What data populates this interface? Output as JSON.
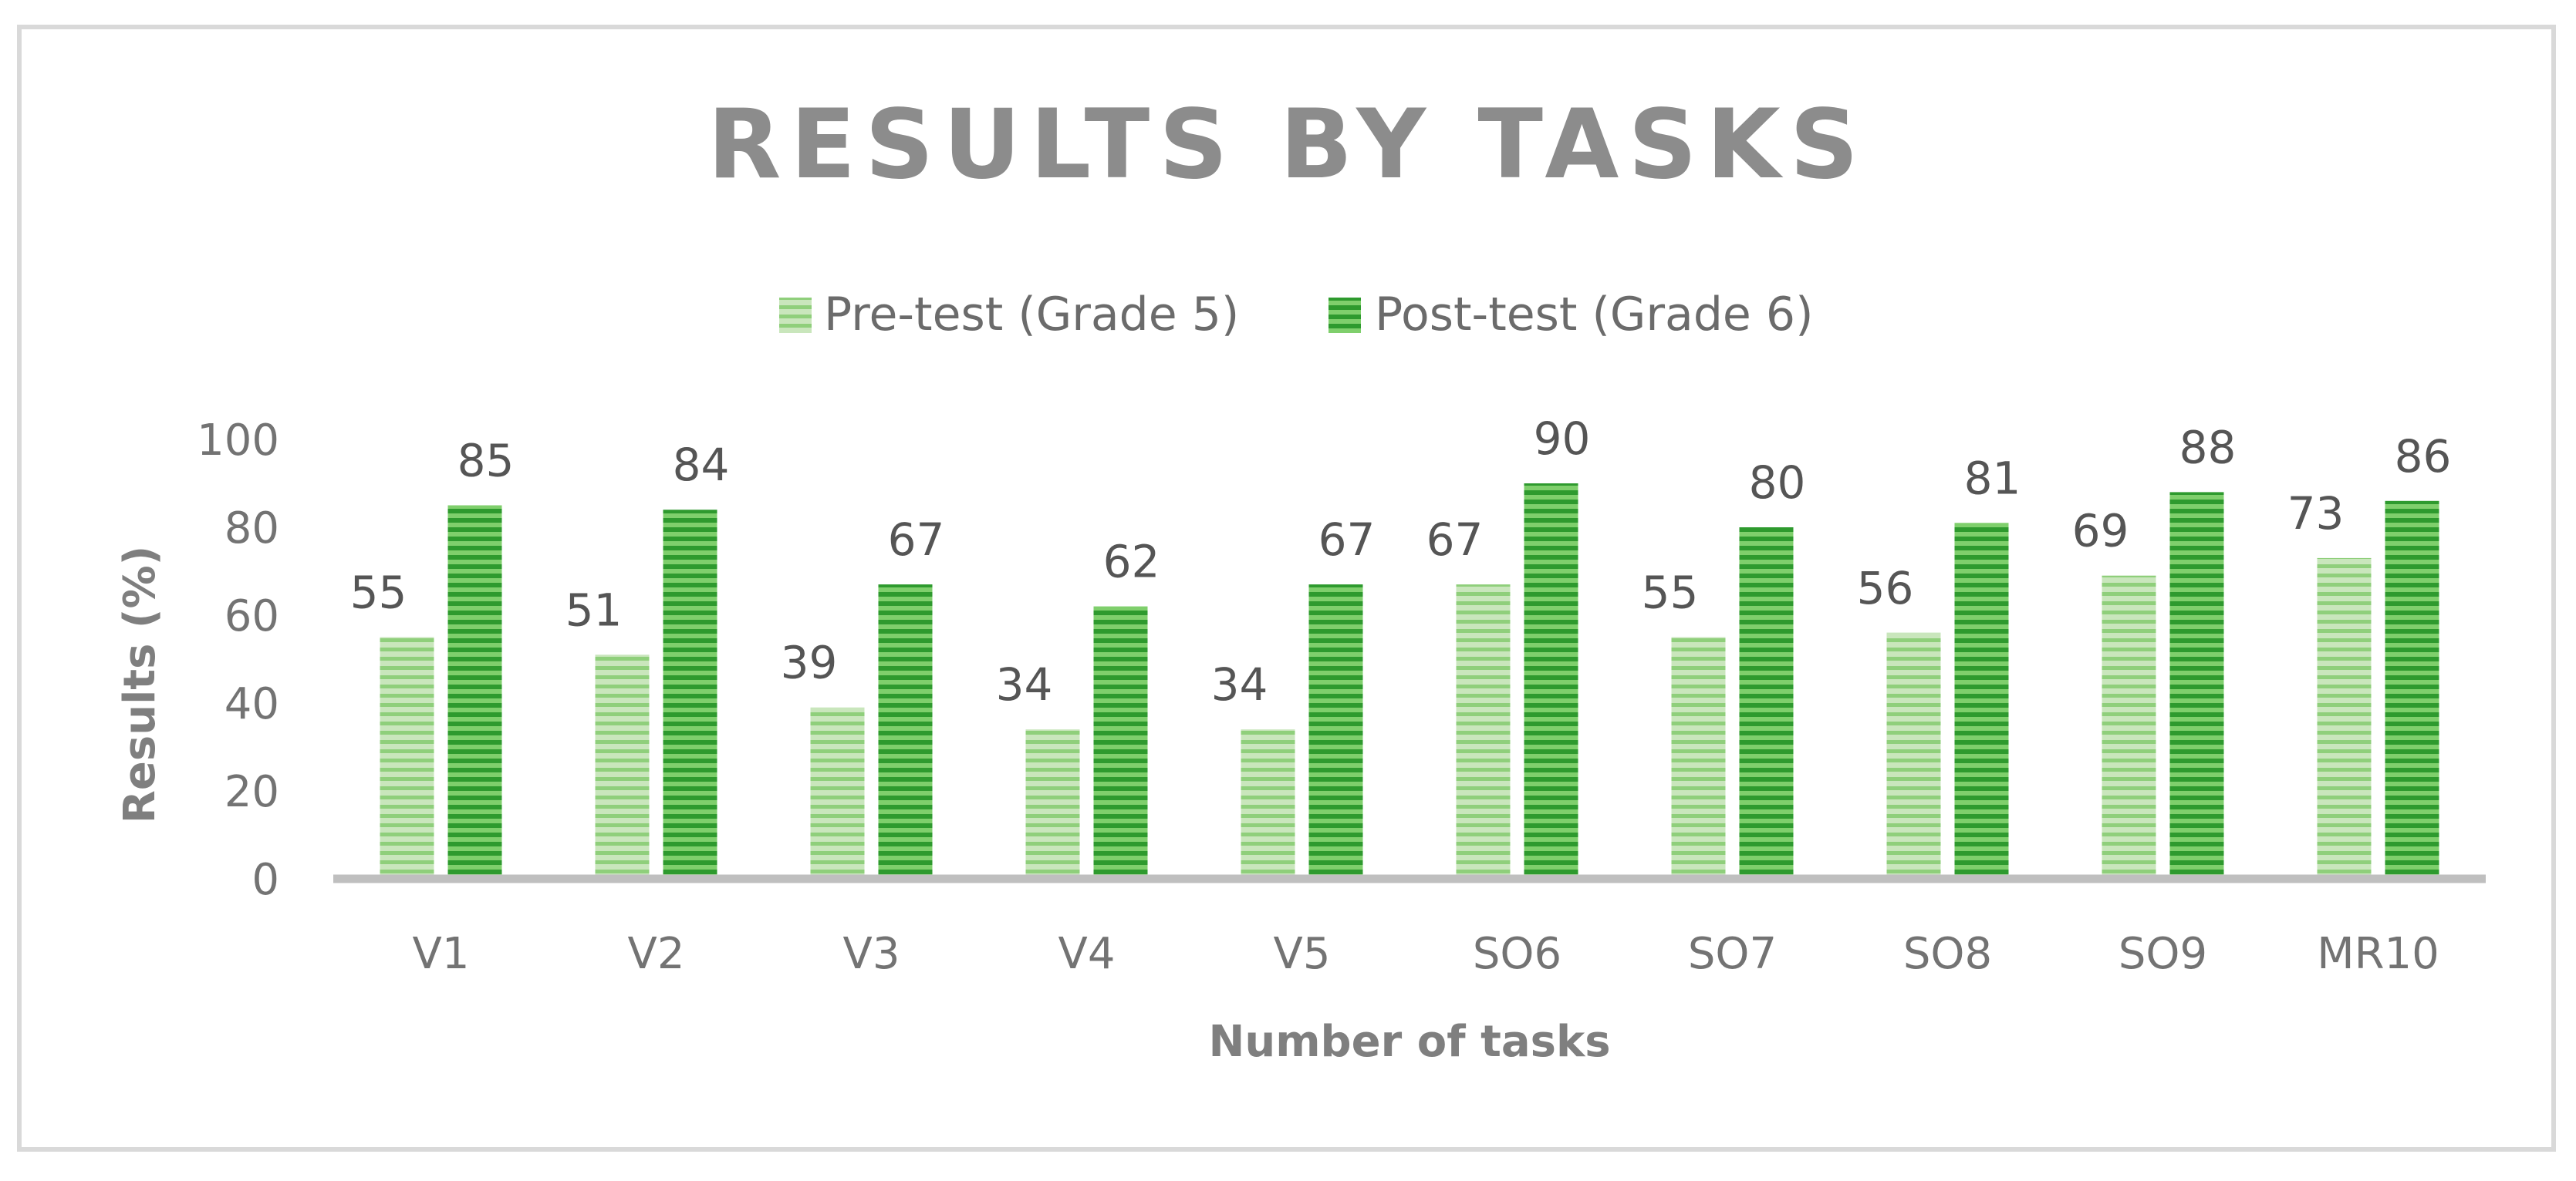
{
  "colors": {
    "pre_light": "#c9e6bc",
    "pre_dark": "#8fcf7b",
    "post_light": "#7fcf6c",
    "post_dark": "#2e9a2e",
    "axis": "#bfbfbf",
    "title": "#8c8c8c"
  },
  "chart_data": {
    "type": "bar",
    "title": "RESULTS BY TASKS",
    "xlabel": "Number of tasks",
    "ylabel": "Results (%)",
    "ylim": [
      0,
      100
    ],
    "yticks": [
      "0",
      "20",
      "40",
      "60",
      "80",
      "100"
    ],
    "grid": false,
    "legend_position": "top-center",
    "categories": [
      "V1",
      "V2",
      "V3",
      "V4",
      "V5",
      "SO6",
      "SO7",
      "SO8",
      "SO9",
      "MR10"
    ],
    "series": [
      {
        "name": "Pre-test (Grade 5)",
        "values": [
          55,
          51,
          39,
          34,
          34,
          67,
          55,
          56,
          69,
          73
        ]
      },
      {
        "name": "Post-test (Grade 6)",
        "values": [
          85,
          84,
          67,
          62,
          67,
          90,
          80,
          81,
          88,
          86
        ]
      }
    ]
  }
}
